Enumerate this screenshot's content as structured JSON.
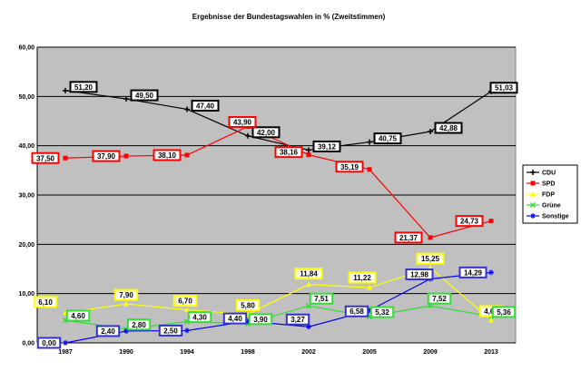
{
  "chart_data": {
    "type": "line",
    "title": "Ergebnisse der Bundestagswahlen in % (Zweitstimmen)",
    "categories": [
      "1987",
      "1990",
      "1994",
      "1998",
      "2002",
      "2005",
      "2009",
      "2013"
    ],
    "ylim": [
      0,
      60
    ],
    "yticks": [
      "0,00",
      "10,00",
      "20,00",
      "30,00",
      "40,00",
      "50,00",
      "60,00"
    ],
    "grid": true,
    "plot_background": "#c0c0c0",
    "legend_position": "right",
    "series": [
      {
        "name": "CDU",
        "color": "#000000",
        "label_bg": "#ffffff",
        "label_border": "#000000",
        "marker": "plus",
        "values": [
          51.2,
          49.5,
          47.4,
          42.0,
          39.12,
          40.75,
          42.88,
          51.03
        ],
        "labels": [
          "51,20",
          "49,50",
          "47,40",
          "42,00",
          "39,12",
          "40,75",
          "42,88",
          "51,03"
        ]
      },
      {
        "name": "SPD",
        "color": "#ff0000",
        "label_bg": "#ffffff",
        "label_border": "#ff0000",
        "marker": "square",
        "values": [
          37.5,
          37.9,
          38.1,
          43.9,
          38.16,
          35.19,
          21.37,
          24.73
        ],
        "labels": [
          "37,50",
          "37,90",
          "38,10",
          "43,90",
          "38,16",
          "35,19",
          "21,37",
          "24,73"
        ]
      },
      {
        "name": "FDP",
        "color": "#ffff00",
        "label_bg": "#ffffff",
        "label_border": "#ffff00",
        "marker": "triangle",
        "values": [
          6.1,
          7.9,
          6.7,
          5.8,
          11.84,
          11.22,
          15.25,
          4.6
        ],
        "labels": [
          "6,10",
          "7,90",
          "6,70",
          "5,80",
          "11,84",
          "11,22",
          "15,25",
          "4,60"
        ]
      },
      {
        "name": "Grüne",
        "color": "#33dd33",
        "label_bg": "#ffffff",
        "label_border": "#33dd33",
        "marker": "x",
        "values": [
          4.6,
          2.8,
          4.3,
          3.9,
          7.51,
          5.32,
          7.52,
          5.36
        ],
        "labels": [
          "4,60",
          "2,80",
          "4,30",
          "3,90",
          "7,51",
          "5,32",
          "7,52",
          "5,36"
        ]
      },
      {
        "name": "Sonstige",
        "color": "#0000ff",
        "label_bg": "#ffffff",
        "label_border": "#3333cc",
        "marker": "star",
        "values": [
          0.0,
          2.4,
          2.5,
          4.4,
          3.27,
          6.58,
          12.98,
          14.29
        ],
        "labels": [
          "0,00",
          "2,40",
          "2,50",
          "4,40",
          "3,27",
          "6,58",
          "12,98",
          "14,29"
        ]
      }
    ]
  }
}
